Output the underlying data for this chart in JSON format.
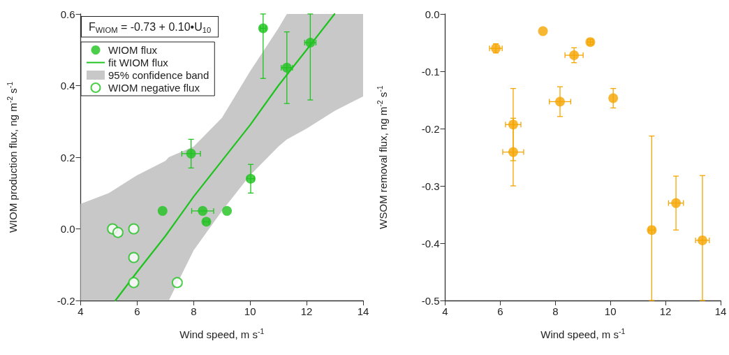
{
  "chart_data": [
    {
      "type": "scatter",
      "xlabel": "Wind speed, m s$^{-1}$",
      "ylabel": "WIOM production flux, ng m$^{-2}$ s$^{-1}$",
      "xlim": [
        4,
        14
      ],
      "xticks": [
        4,
        6,
        8,
        10,
        12,
        14
      ],
      "ylim": [
        -0.2,
        0.6
      ],
      "yticks": [
        -0.2,
        {
          "value": 0,
          "label": "0.0"
        },
        0.2,
        0.4,
        0.6
      ],
      "annotations": [
        "F$_{WIOM}$ = -0.73 + 0.10•U$_{10}$"
      ],
      "legend": "top left",
      "marker": "circle",
      "series": [
        {
          "name": "WIOM flux",
          "color": "#1ec31e",
          "x": [
            10.46,
            11.3,
            12.13,
            7.91,
            10.02,
            6.9,
            8.32,
            8.45,
            9.18
          ],
          "values": [
            0.56,
            0.45,
            0.52,
            0.21,
            0.14,
            0.05,
            0.05,
            0.02,
            0.05
          ],
          "errors": [
            [
              0.42,
              0.6
            ],
            0.1,
            [
              0.36,
              0.6
            ],
            0.04,
            0.04,
            null,
            null,
            null,
            null
          ],
          "xerrors": [
            0.1,
            0.2,
            0.2,
            0.33,
            0.13,
            null,
            0.39,
            0.1,
            null
          ]
        },
        {
          "name": "fit WIOM flux",
          "type": "line",
          "marker": "none",
          "color": "#1ec31e",
          "x": [
            5.23,
            6,
            7,
            8,
            9,
            10,
            11,
            12,
            12.99
          ],
          "values": [
            -0.2,
            -0.12,
            -0.02,
            0.09,
            0.19,
            0.29,
            0.4,
            0.5,
            0.6
          ]
        },
        {
          "name": "95% confidence band",
          "type": "area",
          "color": "#c8c8c8",
          "x": [
            4,
            5,
            6,
            7,
            7.12,
            8,
            9,
            10,
            11,
            11.3,
            12,
            13,
            14
          ],
          "values": [
            null,
            null,
            null,
            null,
            null,
            null,
            null,
            null,
            null,
            null,
            null,
            null,
            null
          ],
          "lower": [
            -0.2,
            -0.2,
            -0.2,
            -0.2,
            -0.2,
            -0.06,
            0.05,
            0.15,
            0.23,
            0.25,
            0.28,
            0.33,
            0.37
          ],
          "upper": [
            0.07,
            0.1,
            0.15,
            0.19,
            0.2,
            0.23,
            0.31,
            0.44,
            0.56,
            0.6,
            0.6,
            0.6,
            0.6
          ]
        },
        {
          "name": "WIOM negative flux",
          "marker": "open_circle",
          "color": "#1ec31e",
          "x": [
            5.13,
            5.32,
            5.88,
            5.88,
            5.88,
            7.42
          ],
          "values": [
            0,
            -0.01,
            0,
            -0.08,
            -0.15,
            -0.15
          ]
        }
      ]
    },
    {
      "type": "scatter",
      "xlabel": "Wind speed, m s$^{-1}$",
      "ylabel": "WSOM removal flux, ng m$^{-2}$ s$^{-1}$",
      "xlim": [
        4,
        14
      ],
      "xticks": [
        4,
        6,
        8,
        10,
        12,
        14
      ],
      "ylim": [
        -0.5,
        0
      ],
      "yticks": [
        -0.5,
        -0.4,
        -0.3,
        -0.2,
        -0.1,
        {
          "value": 0,
          "label": "0.0"
        }
      ],
      "marker": "circle",
      "series": [
        {
          "color": "#f5a500",
          "x": [
            5.84,
            7.55,
            8.68,
            9.27,
            8.17,
            10.1,
            6.47,
            6.47,
            11.5,
            12.38,
            13.34
          ],
          "values": [
            -0.06,
            -0.03,
            -0.072,
            -0.049,
            -0.153,
            -0.147,
            -0.193,
            -0.241,
            -0.377,
            -0.33,
            -0.395
          ],
          "errors": [
            0.008,
            null,
            0.013,
            0.005,
            0.026,
            0.017,
            0.063,
            0.059,
            [
              -0.5,
              -0.213
            ],
            0.047,
            [
              -0.5,
              -0.282
            ]
          ],
          "xerrors": [
            0.23,
            null,
            0.33,
            0.1,
            0.39,
            null,
            0.28,
            0.38,
            0.11,
            0.27,
            0.25
          ]
        }
      ]
    }
  ]
}
